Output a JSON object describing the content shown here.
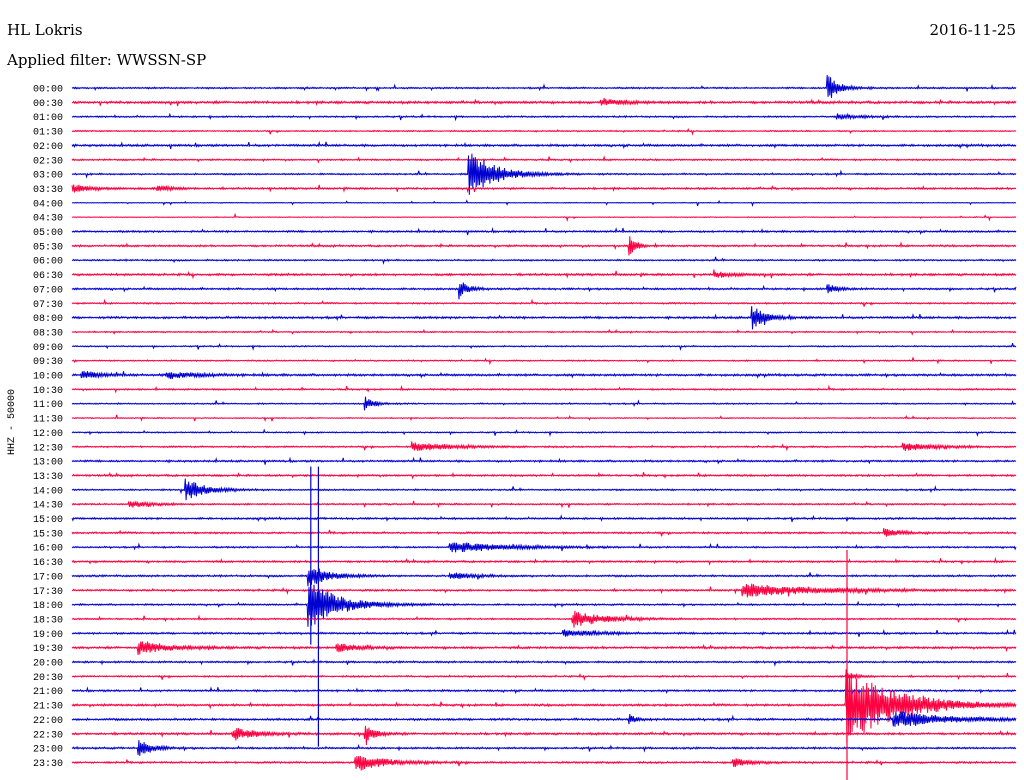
{
  "header": {
    "station": "HL Lokris",
    "date": "2016-11-25",
    "filter": "Applied filter: WWSSN-SP"
  },
  "chart_data": {
    "type": "line",
    "title": "HL Lokris",
    "subtitle": "Applied filter: WWSSN-SP",
    "ylabel": "HHZ - 50000",
    "date": "2016-11-25",
    "trace_colors": [
      "#0000d0",
      "#ff0040"
    ],
    "row_labels": [
      "00:00",
      "00:30",
      "01:00",
      "01:30",
      "02:00",
      "02:30",
      "03:00",
      "03:30",
      "04:00",
      "04:30",
      "05:00",
      "05:30",
      "06:00",
      "06:30",
      "07:00",
      "07:30",
      "08:00",
      "08:30",
      "09:00",
      "09:30",
      "10:00",
      "10:30",
      "11:00",
      "11:30",
      "12:00",
      "12:30",
      "13:00",
      "13:30",
      "14:00",
      "14:30",
      "15:00",
      "15:30",
      "16:00",
      "16:30",
      "17:00",
      "17:30",
      "18:00",
      "18:30",
      "19:00",
      "19:30",
      "20:00",
      "20:30",
      "21:00",
      "21:30",
      "22:00",
      "22:30",
      "23:00",
      "23:30"
    ],
    "noise": [
      0.6,
      0.9,
      0.6,
      0.5,
      0.8,
      0.6,
      0.6,
      0.7,
      0.3,
      0.3,
      0.7,
      0.7,
      0.6,
      0.8,
      0.7,
      0.6,
      0.8,
      0.5,
      0.5,
      0.5,
      0.8,
      0.6,
      0.5,
      0.4,
      0.5,
      0.6,
      0.7,
      0.7,
      0.6,
      0.6,
      0.7,
      0.7,
      0.6,
      0.7,
      0.7,
      0.7,
      0.6,
      0.6,
      0.7,
      0.8,
      0.7,
      0.6,
      0.7,
      0.8,
      0.8,
      0.8,
      0.7,
      0.7
    ],
    "events": [
      {
        "row": 0,
        "t": 0.8,
        "amp": 14,
        "dur": 0.012
      },
      {
        "row": 1,
        "t": 0.56,
        "amp": 4,
        "dur": 0.02
      },
      {
        "row": 2,
        "t": 0.81,
        "amp": 3,
        "dur": 0.02
      },
      {
        "row": 6,
        "t": 0.42,
        "amp": 26,
        "dur": 0.025
      },
      {
        "row": 7,
        "t": 0.0,
        "amp": 4,
        "dur": 0.02
      },
      {
        "row": 7,
        "t": 0.09,
        "amp": 3,
        "dur": 0.015
      },
      {
        "row": 11,
        "t": 0.59,
        "amp": 14,
        "dur": 0.006
      },
      {
        "row": 13,
        "t": 0.68,
        "amp": 4,
        "dur": 0.015
      },
      {
        "row": 14,
        "t": 0.41,
        "amp": 10,
        "dur": 0.008
      },
      {
        "row": 14,
        "t": 0.8,
        "amp": 5,
        "dur": 0.01
      },
      {
        "row": 16,
        "t": 0.72,
        "amp": 14,
        "dur": 0.012
      },
      {
        "row": 20,
        "t": 0.01,
        "amp": 5,
        "dur": 0.015
      },
      {
        "row": 20,
        "t": 0.1,
        "amp": 4,
        "dur": 0.03
      },
      {
        "row": 22,
        "t": 0.31,
        "amp": 7,
        "dur": 0.01
      },
      {
        "row": 25,
        "t": 0.36,
        "amp": 5,
        "dur": 0.035
      },
      {
        "row": 25,
        "t": 0.88,
        "amp": 5,
        "dur": 0.03
      },
      {
        "row": 28,
        "t": 0.12,
        "amp": 11,
        "dur": 0.02
      },
      {
        "row": 29,
        "t": 0.06,
        "amp": 4,
        "dur": 0.02
      },
      {
        "row": 31,
        "t": 0.86,
        "amp": 5,
        "dur": 0.015
      },
      {
        "row": 32,
        "t": 0.4,
        "amp": 6,
        "dur": 0.05
      },
      {
        "row": 34,
        "t": 0.25,
        "amp": 12,
        "dur": 0.02
      },
      {
        "row": 34,
        "t": 0.4,
        "amp": 4,
        "dur": 0.02
      },
      {
        "row": 35,
        "t": 0.71,
        "amp": 7,
        "dur": 0.07
      },
      {
        "row": 36,
        "t": 0.25,
        "amp": 26,
        "dur": 0.03
      },
      {
        "row": 37,
        "t": 0.53,
        "amp": 9,
        "dur": 0.03
      },
      {
        "row": 38,
        "t": 0.52,
        "amp": 4,
        "dur": 0.03
      },
      {
        "row": 39,
        "t": 0.07,
        "amp": 7,
        "dur": 0.03
      },
      {
        "row": 39,
        "t": 0.28,
        "amp": 5,
        "dur": 0.02
      },
      {
        "row": 41,
        "t": 0.82,
        "amp": 4,
        "dur": 0.01
      },
      {
        "row": 43,
        "t": 0.82,
        "amp": 40,
        "dur": 0.05
      },
      {
        "row": 44,
        "t": 0.87,
        "amp": 9,
        "dur": 0.05
      },
      {
        "row": 44,
        "t": 0.59,
        "amp": 6,
        "dur": 0.006
      },
      {
        "row": 45,
        "t": 0.17,
        "amp": 6,
        "dur": 0.025
      },
      {
        "row": 45,
        "t": 0.31,
        "amp": 10,
        "dur": 0.01
      },
      {
        "row": 46,
        "t": 0.07,
        "amp": 10,
        "dur": 0.012
      },
      {
        "row": 47,
        "t": 0.3,
        "amp": 9,
        "dur": 0.03
      },
      {
        "row": 47,
        "t": 0.7,
        "amp": 5,
        "dur": 0.015
      }
    ],
    "spikes": [
      {
        "row": 36,
        "t": 0.253,
        "up": 138,
        "down": 40
      },
      {
        "row": 36,
        "t": 0.261,
        "up": 138,
        "down": 142
      },
      {
        "row": 43,
        "t": 0.821,
        "up": 155,
        "down": 78
      }
    ]
  }
}
